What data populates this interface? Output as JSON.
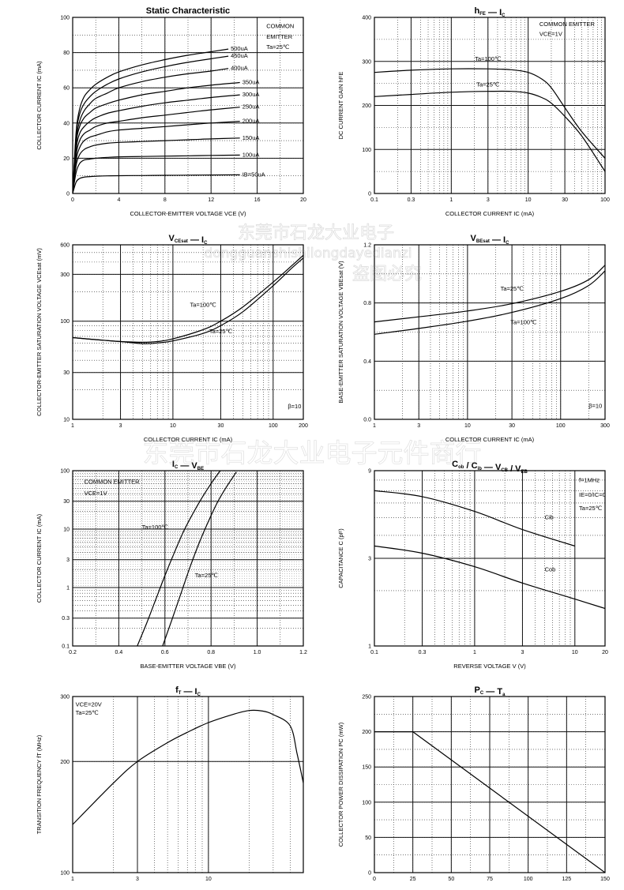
{
  "chart_data": [
    {
      "id": "c1",
      "type": "line",
      "title": "Static Characteristic",
      "xlabel": "COLLECTOR-EMITTER VOLTAGE   V_CE (V)",
      "ylabel": "COLLECTOR CURRENT   I_C (mA)",
      "xscale": "linear",
      "yscale": "linear",
      "xlim": [
        0,
        20
      ],
      "ylim": [
        0,
        100
      ],
      "xticks": [
        0,
        4,
        8,
        12,
        16,
        20
      ],
      "xtick_labels": [
        "0",
        "4",
        "8",
        "12",
        "16",
        "20"
      ],
      "yticks": [
        0,
        20,
        40,
        60,
        80,
        100
      ],
      "ytick_labels": [
        "0",
        "20",
        "40",
        "60",
        "80",
        "100"
      ],
      "annotations": [
        {
          "text": "COMMON",
          "x": 16.8,
          "y": 94
        },
        {
          "text": "EMITTER",
          "x": 16.8,
          "y": 88
        },
        {
          "text": "Ta=25℃",
          "x": 16.8,
          "y": 82
        }
      ],
      "series": [
        {
          "name": "500uA",
          "x": [
            0,
            0.3,
            0.6,
            1,
            1.5,
            2,
            3,
            4,
            6,
            8,
            10,
            12,
            13.5
          ],
          "y": [
            0,
            35,
            48,
            55,
            59,
            62,
            66,
            69,
            73,
            76,
            78.5,
            80.5,
            82
          ]
        },
        {
          "name": "450uA",
          "x": [
            0,
            0.3,
            0.6,
            1,
            1.5,
            2,
            3,
            4,
            6,
            8,
            10,
            12,
            13.5
          ],
          "y": [
            0,
            33,
            45,
            51,
            55,
            58,
            62,
            65,
            69,
            72,
            74.5,
            76.5,
            78
          ]
        },
        {
          "name": "400uA",
          "x": [
            0,
            0.3,
            0.6,
            1,
            1.5,
            2,
            3,
            4,
            6,
            8,
            10,
            12,
            13.5
          ],
          "y": [
            0,
            30,
            41,
            47,
            51,
            54,
            57,
            60,
            63.5,
            66,
            68,
            69.5,
            71
          ]
        },
        {
          "name": "350uA",
          "x": [
            0,
            0.3,
            0.6,
            1,
            1.5,
            2,
            3,
            4,
            6,
            8,
            10,
            12,
            14.5
          ],
          "y": [
            0,
            28,
            38,
            43,
            46,
            48.5,
            51,
            53,
            56,
            58,
            60,
            61.5,
            63
          ]
        },
        {
          "name": "300uA",
          "x": [
            0,
            0.3,
            0.6,
            1,
            1.5,
            2,
            3,
            4,
            6,
            8,
            10,
            12,
            14.5
          ],
          "y": [
            0,
            25,
            34,
            38,
            41,
            43,
            45.5,
            47,
            49.5,
            51.5,
            53,
            54.5,
            56
          ]
        },
        {
          "name": "250uA",
          "x": [
            0,
            0.3,
            0.6,
            1,
            1.5,
            2,
            3,
            4,
            6,
            8,
            10,
            12,
            14.5
          ],
          "y": [
            0,
            22,
            30,
            34,
            36,
            38,
            40,
            41,
            43,
            44.5,
            46,
            47.5,
            49
          ]
        },
        {
          "name": "200uA",
          "x": [
            0,
            0.3,
            0.6,
            1,
            1.5,
            2,
            3,
            4,
            6,
            8,
            10,
            12,
            14.5
          ],
          "y": [
            0,
            19,
            26,
            30,
            32,
            33,
            35,
            36,
            37,
            38,
            39,
            40,
            41
          ]
        },
        {
          "name": "150uA",
          "x": [
            0,
            0.3,
            0.6,
            1,
            1.5,
            2,
            3,
            4,
            6,
            8,
            10,
            12,
            14.5
          ],
          "y": [
            0,
            16,
            22,
            25,
            26.5,
            27.5,
            28.5,
            29,
            29.5,
            30,
            30.5,
            31,
            31.5
          ]
        },
        {
          "name": "100uA",
          "x": [
            0,
            0.3,
            0.6,
            1,
            1.5,
            2,
            3,
            4,
            6,
            8,
            10,
            12,
            14.5
          ],
          "y": [
            0,
            12,
            17,
            19,
            19.5,
            20,
            20.5,
            20.8,
            21,
            21.2,
            21.4,
            21.6,
            21.8
          ]
        },
        {
          "name": "IB=50uA",
          "x": [
            0,
            0.3,
            0.6,
            1,
            1.5,
            2,
            3,
            4,
            6,
            8,
            10,
            12,
            14.5
          ],
          "y": [
            0,
            6.5,
            8.5,
            9.3,
            9.6,
            9.8,
            10,
            10.1,
            10.2,
            10.3,
            10.4,
            10.5,
            10.6
          ]
        }
      ]
    },
    {
      "id": "c2",
      "type": "line",
      "title": "hFE — IC",
      "xlabel": "COLLECTOR CURRENT   I_C (mA)",
      "ylabel": "DC CURRENT GAIN   h_FE",
      "xscale": "log",
      "yscale": "linear",
      "xlim": [
        0.1,
        100
      ],
      "ylim": [
        0,
        400
      ],
      "xticks": [
        0.1,
        0.3,
        1,
        3,
        10,
        30,
        100
      ],
      "xtick_labels": [
        "0.1",
        "0.3",
        "1",
        "3",
        "10",
        "30",
        "100"
      ],
      "yticks": [
        0,
        100,
        200,
        300,
        400
      ],
      "ytick_labels": [
        "0",
        "100",
        "200",
        "300",
        "400"
      ],
      "annotations": [
        {
          "text": "COMMON EMITTER",
          "x": 14,
          "y": 380
        },
        {
          "text": "VCE=1V",
          "x": 14,
          "y": 358
        }
      ],
      "series": [
        {
          "name": "Ta=100℃",
          "x": [
            0.1,
            0.3,
            1,
            3,
            6,
            10,
            15,
            20,
            30,
            50,
            100
          ],
          "y": [
            275,
            280,
            283,
            283,
            281,
            275,
            260,
            240,
            195,
            140,
            80
          ]
        },
        {
          "name": "Ta=25℃",
          "x": [
            0.1,
            0.3,
            1,
            3,
            6,
            10,
            15,
            20,
            30,
            50,
            100
          ],
          "y": [
            220,
            225,
            230,
            232,
            232,
            228,
            218,
            205,
            175,
            130,
            50
          ]
        }
      ]
    },
    {
      "id": "c3",
      "type": "line",
      "title": "VCEsat — IC",
      "xlabel": "COLLECTOR CURRENT   I_C (mA)",
      "ylabel": "COLLECTOR-EMITTER SATURATION VOLTAGE   V_CEsat (mV)",
      "xscale": "log",
      "yscale": "log",
      "xlim": [
        1,
        200
      ],
      "ylim": [
        10,
        600
      ],
      "xticks": [
        1,
        3,
        10,
        30,
        100,
        200
      ],
      "xtick_labels": [
        "1",
        "3",
        "10",
        "30",
        "100",
        "200"
      ],
      "yticks": [
        10,
        30,
        100,
        300,
        600
      ],
      "ytick_labels": [
        "10",
        "30",
        "100",
        "300",
        "600"
      ],
      "annotations": [
        {
          "text": "β=10",
          "x": 140,
          "y": 13
        }
      ],
      "series": [
        {
          "name": "Ta=100℃",
          "x": [
            1,
            2,
            3,
            5,
            7,
            10,
            20,
            30,
            50,
            100,
            150,
            200
          ],
          "y": [
            68,
            64,
            62,
            61,
            62,
            66,
            82,
            100,
            140,
            250,
            360,
            470
          ]
        },
        {
          "name": "Ta=25℃",
          "x": [
            1,
            2,
            3,
            5,
            7,
            10,
            20,
            30,
            50,
            100,
            150,
            200
          ],
          "y": [
            68,
            64,
            62,
            59,
            60,
            63,
            75,
            90,
            125,
            230,
            340,
            440
          ]
        }
      ]
    },
    {
      "id": "c4",
      "type": "line",
      "title": "VBEsat — IC",
      "xlabel": "COLLECTOR CURRENT   I_C (mA)",
      "ylabel": "BASE-EMITTER SATURATION VOLTAGE   V_BEsat (V)",
      "xscale": "log",
      "yscale": "linear",
      "xlim": [
        1,
        300
      ],
      "ylim": [
        0,
        1.2
      ],
      "xticks": [
        1,
        3,
        10,
        30,
        100,
        300
      ],
      "xtick_labels": [
        "1",
        "3",
        "10",
        "30",
        "100",
        "300"
      ],
      "yticks": [
        0,
        0.4,
        0.8,
        1.2
      ],
      "ytick_labels": [
        "0.0",
        "0.4",
        "0.8",
        "1.2"
      ],
      "annotations": [
        {
          "text": "β=10",
          "x": 200,
          "y": 0.08
        }
      ],
      "series": [
        {
          "name": "Ta=25℃",
          "x": [
            1,
            3,
            10,
            30,
            100,
            200,
            300
          ],
          "y": [
            0.67,
            0.705,
            0.745,
            0.795,
            0.88,
            0.96,
            1.06
          ]
        },
        {
          "name": "Ta=100℃",
          "x": [
            1,
            3,
            10,
            30,
            100,
            200,
            300
          ],
          "y": [
            0.585,
            0.625,
            0.675,
            0.735,
            0.83,
            0.92,
            1.02
          ]
        }
      ]
    },
    {
      "id": "c5",
      "type": "line",
      "title": "IC — VBE",
      "xlabel": "BASE-EMITTER VOLTAGE   V_BE (V)",
      "ylabel": "COLLECTOR CURRENT   I_C (mA)",
      "xscale": "linear",
      "yscale": "log",
      "xlim": [
        0.2,
        1.2
      ],
      "ylim": [
        0.1,
        100
      ],
      "xticks": [
        0.2,
        0.4,
        0.6,
        0.8,
        1.0,
        1.2
      ],
      "xtick_labels": [
        "0.2",
        "0.4",
        "0.6",
        "0.8",
        "1.0",
        "1.2"
      ],
      "yticks": [
        0.1,
        0.3,
        1,
        3,
        10,
        30,
        100
      ],
      "ytick_labels": [
        "0.1",
        "0.3",
        "1",
        "3",
        "10",
        "30",
        "100"
      ],
      "annotations": [
        {
          "text": "COMMON EMITTER",
          "x": 0.25,
          "y": 60
        },
        {
          "text": "VCE=1V",
          "x": 0.25,
          "y": 38
        }
      ],
      "series": [
        {
          "name": "Ta=100℃",
          "x": [
            0.48,
            0.52,
            0.56,
            0.6,
            0.64,
            0.68,
            0.72,
            0.76,
            0.8,
            0.84
          ],
          "y": [
            0.1,
            0.24,
            0.62,
            1.6,
            3.9,
            9,
            18,
            34,
            60,
            100
          ]
        },
        {
          "name": "Ta=25℃",
          "x": [
            0.59,
            0.63,
            0.67,
            0.71,
            0.75,
            0.79,
            0.83,
            0.87,
            0.91
          ],
          "y": [
            0.1,
            0.28,
            0.8,
            2.3,
            6,
            14,
            30,
            55,
            95
          ]
        }
      ]
    },
    {
      "id": "c6",
      "type": "line",
      "title": "Cob / Cib — VCB / VEB",
      "xlabel": "REVERSE VOLTAGE   V (V)",
      "ylabel": "CAPACITANCE   C (pF)",
      "xscale": "log",
      "yscale": "log",
      "xlim": [
        0.1,
        20
      ],
      "ylim": [
        1,
        9
      ],
      "xticks": [
        0.1,
        0.3,
        1,
        3,
        10,
        20
      ],
      "xtick_labels": [
        "0.1",
        "0.3",
        "1",
        "3",
        "10",
        "20"
      ],
      "yticks": [
        1,
        3,
        9
      ],
      "ytick_labels": [
        "1",
        "3",
        "9"
      ],
      "annotations": [
        {
          "text": "f=1MHz",
          "x": 11,
          "y": 7.8
        },
        {
          "text": "IE=0/IC=0",
          "x": 11,
          "y": 6.5
        },
        {
          "text": "Ta=25℃",
          "x": 11,
          "y": 5.5
        }
      ],
      "series": [
        {
          "name": "Cib",
          "x": [
            0.1,
            0.3,
            1,
            3,
            10
          ],
          "y": [
            7,
            6.5,
            5.4,
            4.3,
            3.5
          ]
        },
        {
          "name": "Cob",
          "x": [
            0.1,
            0.3,
            1,
            3,
            10,
            20
          ],
          "y": [
            3.5,
            3.2,
            2.7,
            2.2,
            1.8,
            1.6
          ]
        }
      ]
    },
    {
      "id": "c7",
      "type": "line",
      "title": "fT — IC",
      "xlabel": "",
      "ylabel": "TRANSITION FREQUENCY   f_T (MHz)",
      "xscale": "log",
      "yscale": "log",
      "xlim": [
        1,
        50
      ],
      "ylim": [
        100,
        300
      ],
      "xticks": [
        1,
        3,
        10
      ],
      "xtick_labels": [
        "1",
        "3",
        "10"
      ],
      "yticks": [
        100,
        200,
        300
      ],
      "ytick_labels": [
        "100",
        "200",
        "300"
      ],
      "annotations": [
        {
          "text": "VCE=20V",
          "x": 1.05,
          "y": 282
        },
        {
          "text": "Ta=25℃",
          "x": 1.05,
          "y": 268
        }
      ],
      "series": [
        {
          "name": "fT",
          "x": [
            1,
            2,
            3,
            5,
            7,
            10,
            15,
            20,
            25,
            30,
            40,
            45,
            50
          ],
          "y": [
            135,
            175,
            200,
            225,
            240,
            255,
            268,
            275,
            274,
            268,
            250,
            210,
            175
          ]
        }
      ]
    },
    {
      "id": "c8",
      "type": "line",
      "title": "PC — Ta",
      "xlabel": "",
      "ylabel": "COLLECTOR POWER DISSIPATION   P_C (mW)",
      "xscale": "linear",
      "yscale": "linear",
      "xlim": [
        0,
        150
      ],
      "ylim": [
        0,
        250
      ],
      "xticks": [
        0,
        25,
        50,
        75,
        100,
        125,
        150
      ],
      "xtick_labels": [
        "0",
        "25",
        "50",
        "75",
        "100",
        "125",
        "150"
      ],
      "yticks": [
        0,
        50,
        100,
        150,
        200,
        250
      ],
      "ytick_labels": [
        "0",
        "50",
        "100",
        "150",
        "200",
        "250"
      ],
      "annotations": [],
      "series": [
        {
          "name": "PC",
          "x": [
            0,
            25,
            150
          ],
          "y": [
            200,
            200,
            0
          ]
        }
      ]
    }
  ],
  "watermark": {
    "line1": "东莞市石龙大业电子",
    "line2": "dongguanshishilongdayedianzi",
    "line3": "盗图必究",
    "line4": "东莞市石龙大业电子元件商行"
  }
}
